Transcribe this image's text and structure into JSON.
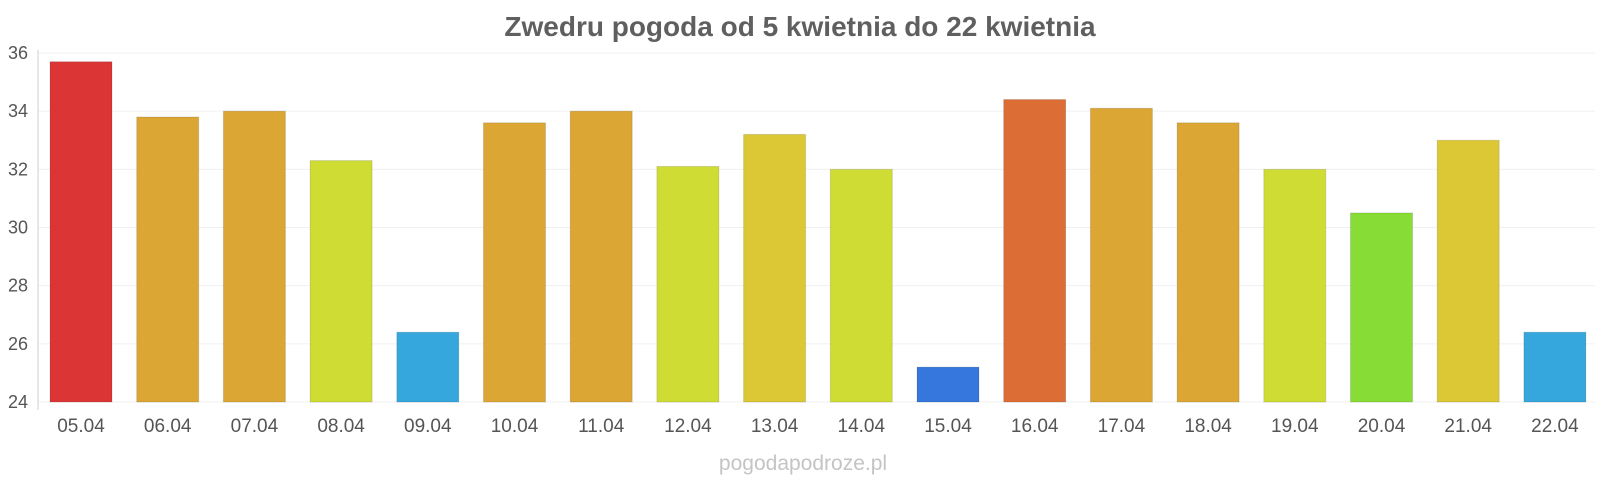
{
  "chart_data": {
    "type": "bar",
    "title": "Zwedru pogoda od 5 kwietnia do 22 kwietnia",
    "xlabel": "",
    "ylabel": "",
    "ylim": [
      24,
      36
    ],
    "yticks": [
      24,
      26,
      28,
      30,
      32,
      34,
      36
    ],
    "grid": true,
    "legend": "none",
    "categories": [
      "05.04",
      "06.04",
      "07.04",
      "08.04",
      "09.04",
      "10.04",
      "11.04",
      "12.04",
      "13.04",
      "14.04",
      "15.04",
      "16.04",
      "17.04",
      "18.04",
      "19.04",
      "20.04",
      "21.04",
      "22.04"
    ],
    "values": [
      35.7,
      33.8,
      34.0,
      32.3,
      26.4,
      33.6,
      34.0,
      32.1,
      33.2,
      32.0,
      25.2,
      34.4,
      34.1,
      33.6,
      32.0,
      30.5,
      33.0,
      26.4
    ],
    "colors": [
      "#dc3535",
      "#dca634",
      "#dca634",
      "#cfdc34",
      "#35a7dc",
      "#dca634",
      "#dca634",
      "#cfdc34",
      "#dcc834",
      "#cfdc34",
      "#3577dc",
      "#dc6d35",
      "#dca634",
      "#dca634",
      "#cfdc34",
      "#87dc35",
      "#dcc834",
      "#35a7dc"
    ]
  },
  "footer": "pogodapodroze.pl"
}
